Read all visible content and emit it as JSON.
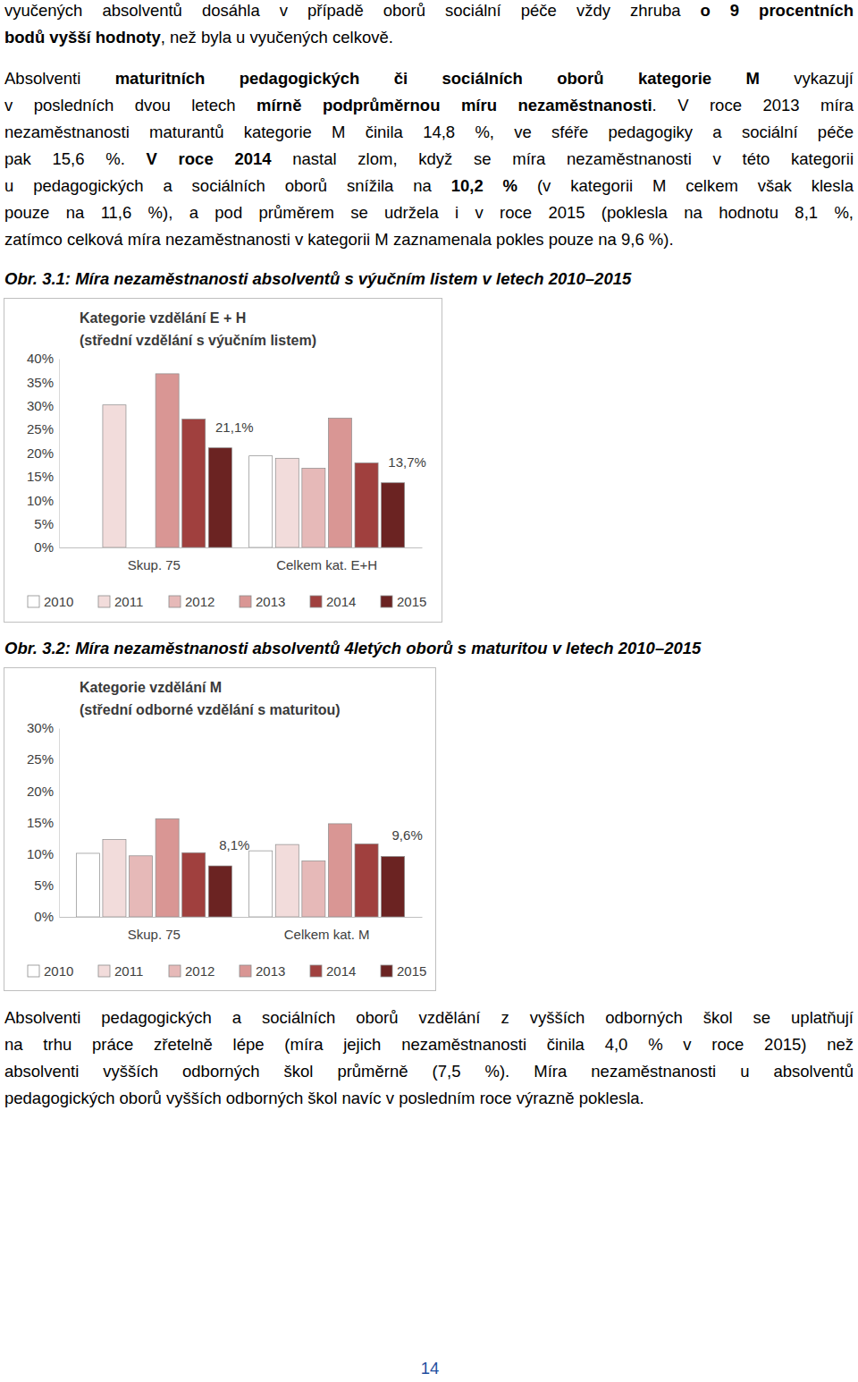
{
  "paragraphs": [
    [
      [
        "vyučených absolventů dosáhla v případě oborů sociální péče vždy zhruba ",
        {
          "text": "o 9 procentních",
          "bold": true
        }
      ],
      [
        {
          "text": "bodů vyšší hodnoty",
          "bold": true
        },
        ", než byla u vyučených celkově."
      ]
    ],
    [
      [
        "Absolventi ",
        {
          "text": "maturitních pedagogických či sociálních oborů kategorie M",
          "bold": true
        },
        " vykazují"
      ],
      [
        "v posledních dvou letech ",
        {
          "text": "mírně podprůměrnou míru nezaměstnanosti",
          "bold": true
        },
        ". V roce 2013 míra"
      ],
      [
        "nezaměstnanosti maturantů kategorie M činila 14,8 %, ve sféře pedagogiky a sociální péče"
      ],
      [
        "pak 15,6 %. ",
        {
          "text": "V roce 2014",
          "bold": true
        },
        " nastal zlom, když se míra nezaměstnanosti v této kategorii"
      ],
      [
        "u pedagogických a sociálních oborů snížila na ",
        {
          "text": "10,2 %",
          "bold": true
        },
        " (v kategorii M celkem však klesla"
      ],
      [
        "pouze na 11,6 %), a pod průměrem se udržela i v roce 2015 (poklesla na hodnotu 8,1 %,"
      ],
      [
        "zatímco celková míra nezaměstnanosti v kategorii M zaznamenala pokles pouze na 9,6 %)."
      ]
    ],
    [
      [
        "Absolventi pedagogických a sociálních oborů vzdělání z vyšších odborných škol se uplatňují"
      ],
      [
        "na trhu práce zřetelně lépe (míra jejich nezaměstnanosti činila 4,0 % v roce 2015) než"
      ],
      [
        "absolventi vyšších odborných škol průměrně (7,5 %). Míra nezaměstnanosti u absolventů"
      ],
      [
        "pedagogických oborů vyšších odborných škol navíc v posledním roce výrazně poklesla."
      ]
    ]
  ],
  "captions": [
    "Obr. 3.1: Míra nezaměstnanosti absolventů s výučním listem v letech 2010–2015",
    "Obr. 3.2: Míra nezaměstnanosti absolventů 4letých oborů s maturitou v letech 2010–2015"
  ],
  "chart_data": [
    {
      "type": "bar",
      "title": "Kategorie vzdělání E + H",
      "subtitle": "(střední vzdělání s výučním listem)",
      "categories": [
        "Skup. 75",
        "Celkem kat. E+H"
      ],
      "series": [
        {
          "name": "2010",
          "color": "#ffffff",
          "values": [
            null,
            19.4
          ]
        },
        {
          "name": "2011",
          "color": "#f2dcdb",
          "values": [
            30.2,
            18.9
          ]
        },
        {
          "name": "2012",
          "color": "#e6b9b8",
          "values": [
            null,
            16.8
          ]
        },
        {
          "name": "2013",
          "color": "#d99694",
          "values": [
            36.8,
            27.4
          ]
        },
        {
          "name": "2014",
          "color": "#a0403e",
          "values": [
            27.2,
            17.9
          ]
        },
        {
          "name": "2015",
          "color": "#6b2322",
          "values": [
            21.1,
            13.7
          ],
          "value_labels": [
            "21,1%",
            "13,7%"
          ],
          "data_labels": true
        }
      ],
      "ylim": [
        0,
        40
      ],
      "yticks": [
        {
          "value": 0,
          "label": "0%"
        },
        {
          "value": 5,
          "label": "5%"
        },
        {
          "value": 10,
          "label": "10%"
        },
        {
          "value": 15,
          "label": "15%"
        },
        {
          "value": 20,
          "label": "20%"
        },
        {
          "value": 25,
          "label": "25%"
        },
        {
          "value": 30,
          "label": "30%"
        },
        {
          "value": 35,
          "label": "35%"
        },
        {
          "value": 40,
          "label": "40%"
        }
      ],
      "grid": false,
      "legend": "bottom"
    },
    {
      "type": "bar",
      "title": "Kategorie vzdělání M",
      "subtitle": "(střední odborné vzdělání s maturitou)",
      "categories": [
        "Skup. 75",
        "Celkem kat. M"
      ],
      "series": [
        {
          "name": "2010",
          "color": "#ffffff",
          "values": [
            10.1,
            10.5
          ]
        },
        {
          "name": "2011",
          "color": "#f2dcdb",
          "values": [
            12.3,
            11.5
          ]
        },
        {
          "name": "2012",
          "color": "#e6b9b8",
          "values": [
            9.7,
            8.9
          ]
        },
        {
          "name": "2013",
          "color": "#d99694",
          "values": [
            15.6,
            14.8
          ]
        },
        {
          "name": "2014",
          "color": "#a0403e",
          "values": [
            10.2,
            11.6
          ]
        },
        {
          "name": "2015",
          "color": "#6b2322",
          "values": [
            8.1,
            9.6
          ],
          "value_labels": [
            "8,1%",
            "9,6%"
          ],
          "data_labels": true
        }
      ],
      "ylim": [
        0,
        30
      ],
      "yticks": [
        {
          "value": 0,
          "label": "0%"
        },
        {
          "value": 5,
          "label": "5%"
        },
        {
          "value": 10,
          "label": "10%"
        },
        {
          "value": 15,
          "label": "15%"
        },
        {
          "value": 20,
          "label": "20%"
        },
        {
          "value": 25,
          "label": "25%"
        },
        {
          "value": 30,
          "label": "30%"
        }
      ],
      "grid": false,
      "legend": "bottom"
    }
  ],
  "page_number": "14"
}
